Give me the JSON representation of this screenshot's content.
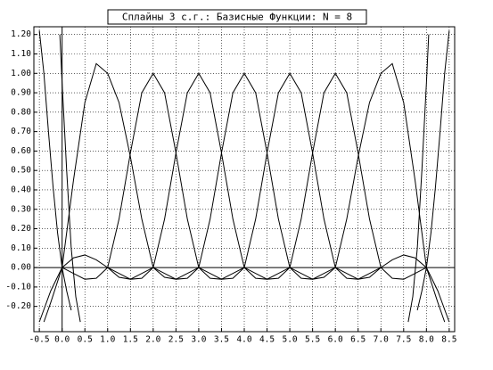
{
  "chart_data": {
    "type": "line",
    "title": "Сплайны 3 с.г.: Базисные Функции: N = 8",
    "xlim": [
      -0.62,
      8.62
    ],
    "ylim": [
      -0.33,
      1.24
    ],
    "xticks": [
      -0.5,
      {
        "value": 0,
        "label": "0.0"
      },
      0.5,
      {
        "value": 1,
        "label": "1.0"
      },
      1.5,
      {
        "value": 2,
        "label": "2.0"
      },
      2.5,
      {
        "value": 3,
        "label": "3.0"
      },
      3.5,
      {
        "value": 4,
        "label": "4.0"
      },
      4.5,
      {
        "value": 5,
        "label": "5.0"
      },
      5.5,
      {
        "value": 6,
        "label": "6.0"
      },
      6.5,
      {
        "value": 7,
        "label": "7.0"
      },
      7.5,
      {
        "value": 8,
        "label": "8.0"
      },
      8.5
    ],
    "yticks": [
      {
        "value": -0.2,
        "label": "-0.20"
      },
      {
        "value": -0.1,
        "label": "-0.10"
      },
      {
        "value": 0,
        "label": "0.00"
      },
      {
        "value": 0.1,
        "label": "0.10"
      },
      {
        "value": 0.2,
        "label": "0.20"
      },
      {
        "value": 0.3,
        "label": "0.30"
      },
      {
        "value": 0.4,
        "label": "0.40"
      },
      {
        "value": 0.5,
        "label": "0.50"
      },
      {
        "value": 0.6,
        "label": "0.60"
      },
      {
        "value": 0.7,
        "label": "0.70"
      },
      {
        "value": 0.8,
        "label": "0.80"
      },
      {
        "value": 0.9,
        "label": "0.90"
      },
      {
        "value": 1,
        "label": "1.00"
      },
      {
        "value": 1.1,
        "label": "1.10"
      },
      {
        "value": 1.2,
        "label": "1.20"
      }
    ],
    "grid": true,
    "color": "#000000",
    "series": [
      {
        "x": [
          -0.05,
          0,
          0.1,
          0.2,
          0.3,
          0.4
        ],
        "values": [
          1.2,
          0.95,
          0.5,
          0.1,
          -0.15,
          -0.28
        ]
      },
      {
        "x": [
          -0.5,
          -0.4,
          -0.3,
          -0.2,
          -0.1,
          0,
          0.1,
          0.2
        ],
        "values": [
          1.22,
          1,
          0.7,
          0.42,
          0.18,
          0,
          -0.12,
          -0.22
        ]
      },
      {
        "x": [
          -0.5,
          -0.25,
          0,
          0.25,
          0.5,
          0.75,
          1,
          1.25,
          1.5,
          1.75,
          2
        ],
        "values": [
          -0.28,
          -0.12,
          0,
          0.05,
          0.065,
          0.04,
          0,
          -0.05,
          -0.06,
          -0.03,
          0
        ]
      },
      {
        "x": [
          -0.4,
          -0.25,
          0,
          0.25,
          0.5,
          0.75,
          1,
          1.25,
          1.5,
          1.75,
          2,
          2.25,
          2.5,
          2.75,
          3
        ],
        "values": [
          -0.28,
          -0.18,
          0,
          0.45,
          0.85,
          1.05,
          1,
          0.85,
          0.57,
          0.25,
          0,
          -0.05,
          -0.06,
          -0.03,
          0
        ]
      },
      {
        "x": [
          0,
          0.25,
          0.5,
          0.75,
          1,
          1.25,
          1.5,
          1.75,
          2,
          2.25,
          2.5,
          2.75,
          3,
          3.25,
          3.5,
          3.75,
          4
        ],
        "values": [
          0,
          -0.03,
          -0.06,
          -0.055,
          0,
          0.25,
          0.59,
          0.9,
          1,
          0.9,
          0.59,
          0.25,
          0,
          -0.055,
          -0.06,
          -0.03,
          0
        ]
      },
      {
        "x": [
          1,
          1.25,
          1.5,
          1.75,
          2,
          2.25,
          2.5,
          2.75,
          3,
          3.25,
          3.5,
          3.75,
          4,
          4.25,
          4.5,
          4.75,
          5
        ],
        "values": [
          0,
          -0.03,
          -0.06,
          -0.055,
          0,
          0.25,
          0.59,
          0.9,
          1,
          0.9,
          0.59,
          0.25,
          0,
          -0.055,
          -0.06,
          -0.03,
          0
        ]
      },
      {
        "x": [
          2,
          2.25,
          2.5,
          2.75,
          3,
          3.25,
          3.5,
          3.75,
          4,
          4.25,
          4.5,
          4.75,
          5,
          5.25,
          5.5,
          5.75,
          6
        ],
        "values": [
          0,
          -0.03,
          -0.06,
          -0.055,
          0,
          0.25,
          0.59,
          0.9,
          1,
          0.9,
          0.59,
          0.25,
          0,
          -0.055,
          -0.06,
          -0.03,
          0
        ]
      },
      {
        "x": [
          3,
          3.25,
          3.5,
          3.75,
          4,
          4.25,
          4.5,
          4.75,
          5,
          5.25,
          5.5,
          5.75,
          6,
          6.25,
          6.5,
          6.75,
          7
        ],
        "values": [
          0,
          -0.03,
          -0.06,
          -0.055,
          0,
          0.25,
          0.59,
          0.9,
          1,
          0.9,
          0.59,
          0.25,
          0,
          -0.055,
          -0.06,
          -0.03,
          0
        ]
      },
      {
        "x": [
          4,
          4.25,
          4.5,
          4.75,
          5,
          5.25,
          5.5,
          5.75,
          6,
          6.25,
          6.5,
          6.75,
          7,
          7.25,
          7.5,
          7.75,
          8
        ],
        "values": [
          0,
          -0.03,
          -0.06,
          -0.055,
          0,
          0.25,
          0.59,
          0.9,
          1,
          0.9,
          0.59,
          0.25,
          0,
          -0.055,
          -0.06,
          -0.03,
          0
        ]
      },
      {
        "x": [
          5,
          5.25,
          5.5,
          5.75,
          6,
          6.25,
          6.5,
          6.75,
          7,
          7.25,
          7.5,
          7.75,
          8,
          8.25,
          8.4
        ],
        "values": [
          0,
          -0.03,
          -0.06,
          -0.05,
          0,
          0.25,
          0.57,
          0.85,
          1,
          1.05,
          0.85,
          0.45,
          0,
          -0.18,
          -0.28
        ]
      },
      {
        "x": [
          6,
          6.25,
          6.5,
          6.75,
          7,
          7.25,
          7.5,
          7.75,
          8,
          8.25,
          8.5
        ],
        "values": [
          0,
          -0.03,
          -0.06,
          -0.05,
          0,
          0.04,
          0.065,
          0.05,
          0,
          -0.12,
          -0.28
        ]
      },
      {
        "x": [
          7.8,
          7.9,
          8,
          8.1,
          8.2,
          8.3,
          8.4,
          8.5
        ],
        "values": [
          -0.22,
          -0.12,
          0,
          0.18,
          0.42,
          0.7,
          1,
          1.22
        ]
      },
      {
        "x": [
          7.6,
          7.7,
          7.8,
          7.9,
          8,
          8.05
        ],
        "values": [
          -0.28,
          -0.15,
          0.1,
          0.5,
          0.95,
          1.2
        ]
      }
    ]
  }
}
